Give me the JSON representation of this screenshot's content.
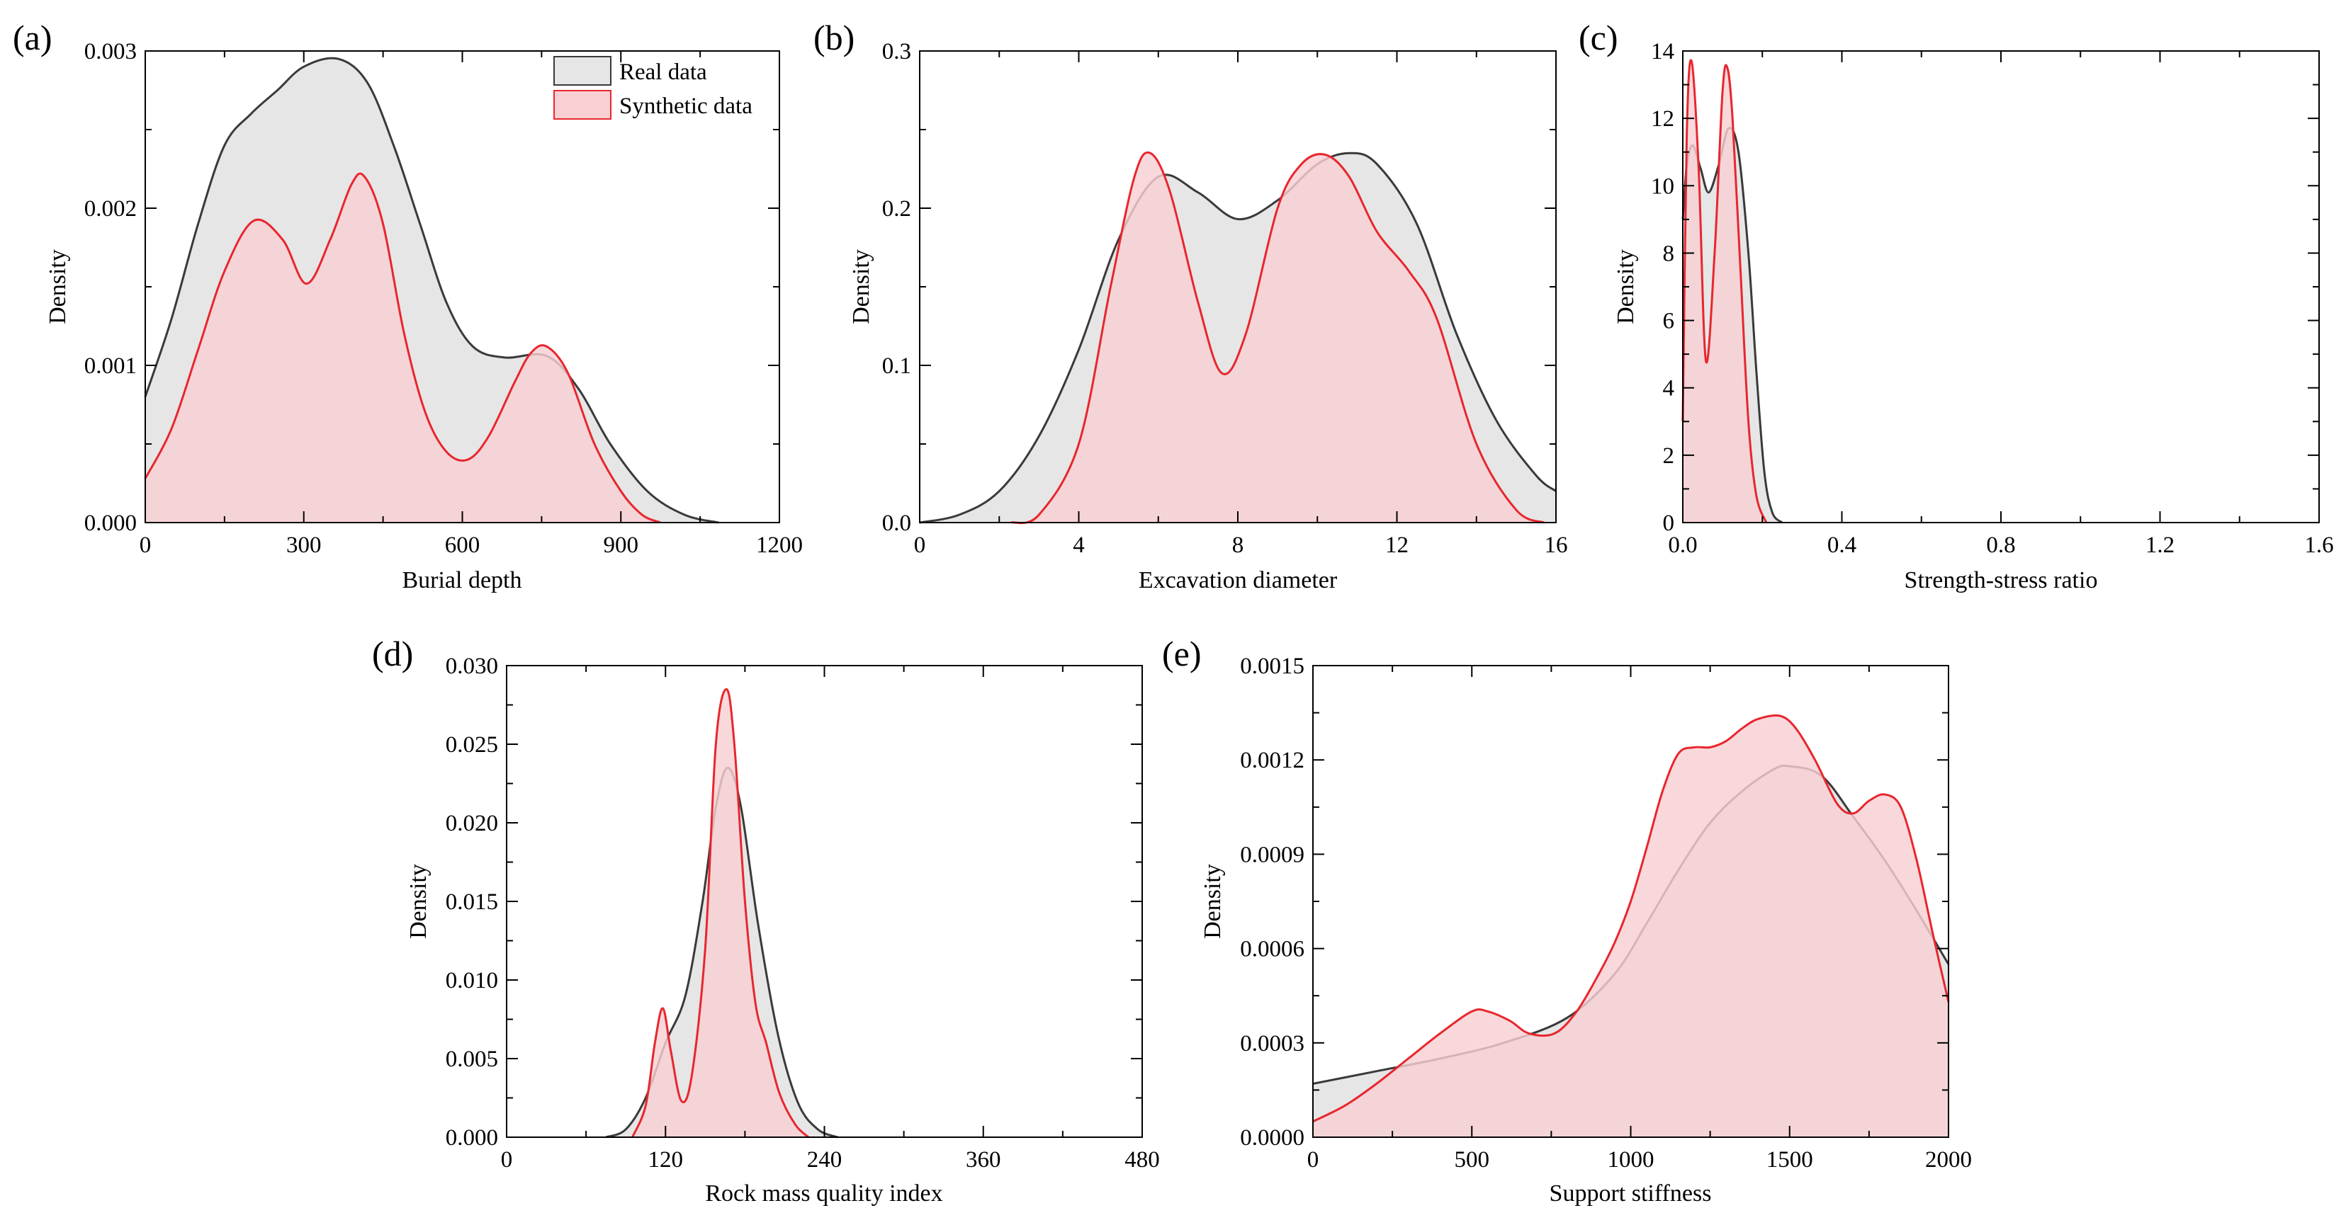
{
  "figure": {
    "colors": {
      "real_fill": "#e6e6e6",
      "real_line": "#3a3a3a",
      "synth_fill": "#f8d0d3",
      "synth_line": "#e8262e"
    },
    "legend": {
      "real_label": "Real data",
      "synth_label": "Synthetic data",
      "placement": "top-right of panel (a)"
    }
  },
  "chart_data": [
    {
      "id": "a",
      "type": "area",
      "panel_label": "(a)",
      "xlabel": "Burial depth",
      "ylabel": "Density",
      "xlim": [
        0,
        1200
      ],
      "ylim": [
        0,
        0.003
      ],
      "xticks": [
        "0",
        "300",
        "600",
        "900",
        "1200"
      ],
      "yticks": [
        "0.000",
        "0.001",
        "0.002",
        "0.003"
      ],
      "series": [
        {
          "name": "Real data",
          "x": [
            0,
            50,
            100,
            150,
            200,
            250,
            300,
            365,
            420,
            470,
            520,
            570,
            620,
            680,
            760,
            820,
            880,
            950,
            1020,
            1085
          ],
          "y": [
            0.0008,
            0.0013,
            0.0019,
            0.0024,
            0.0026,
            0.00275,
            0.0029,
            0.00295,
            0.0028,
            0.0024,
            0.0019,
            0.0014,
            0.00112,
            0.00105,
            0.00106,
            0.00085,
            0.0005,
            0.0002,
            5e-05,
            0.0
          ]
        },
        {
          "name": "Synthetic data",
          "x": [
            0,
            50,
            100,
            150,
            205,
            260,
            305,
            350,
            390,
            415,
            450,
            490,
            530,
            570,
            610,
            650,
            700,
            730,
            760,
            800,
            850,
            900,
            940,
            975
          ],
          "y": [
            0.00028,
            0.0006,
            0.0011,
            0.0016,
            0.00192,
            0.0018,
            0.00152,
            0.0018,
            0.00215,
            0.0022,
            0.0019,
            0.0012,
            0.0007,
            0.00045,
            0.0004,
            0.00055,
            0.0009,
            0.00108,
            0.00112,
            0.00095,
            0.0005,
            0.0002,
            5e-05,
            0.0
          ]
        }
      ]
    },
    {
      "id": "b",
      "type": "area",
      "panel_label": "(b)",
      "xlabel": "Excavation diameter",
      "ylabel": "Density",
      "xlim": [
        0,
        16
      ],
      "ylim": [
        0,
        0.3
      ],
      "xticks": [
        "0",
        "4",
        "8",
        "12",
        "16"
      ],
      "yticks": [
        "0.0",
        "0.1",
        "0.2",
        "0.3"
      ],
      "series": [
        {
          "name": "Real data",
          "x": [
            0,
            1,
            2,
            3,
            4,
            5,
            6,
            7,
            8,
            9,
            10,
            10.8,
            11.5,
            12.5,
            13.5,
            14.5,
            15.5,
            16
          ],
          "y": [
            0.0,
            0.005,
            0.02,
            0.055,
            0.11,
            0.18,
            0.22,
            0.21,
            0.193,
            0.205,
            0.228,
            0.235,
            0.228,
            0.19,
            0.12,
            0.065,
            0.03,
            0.02
          ]
        },
        {
          "name": "Synthetic data",
          "x": [
            2.3,
            3,
            4,
            4.8,
            5.4,
            5.8,
            6.3,
            7,
            7.6,
            8.2,
            9,
            9.6,
            10.2,
            10.8,
            11.5,
            12.3,
            13,
            14,
            15,
            15.7
          ],
          "y": [
            0.0,
            0.005,
            0.05,
            0.15,
            0.22,
            0.235,
            0.21,
            0.14,
            0.095,
            0.12,
            0.2,
            0.228,
            0.234,
            0.22,
            0.185,
            0.16,
            0.13,
            0.05,
            0.008,
            0.0
          ]
        }
      ]
    },
    {
      "id": "c",
      "type": "area",
      "panel_label": "(c)",
      "xlabel": "Strength-stress ratio",
      "ylabel": "Density",
      "xlim": [
        0,
        1.6
      ],
      "ylim": [
        0,
        14
      ],
      "xticks": [
        "0.0",
        "0.4",
        "0.8",
        "1.2",
        "1.6"
      ],
      "yticks": [
        "0",
        "2",
        "4",
        "6",
        "8",
        "10",
        "12",
        "14"
      ],
      "series": [
        {
          "name": "Real data",
          "x": [
            0.0,
            0.01,
            0.025,
            0.045,
            0.065,
            0.09,
            0.115,
            0.14,
            0.165,
            0.185,
            0.205,
            0.225,
            0.25
          ],
          "y": [
            9.0,
            10.6,
            11.2,
            10.5,
            9.8,
            10.6,
            11.7,
            11.0,
            8.0,
            4.5,
            1.5,
            0.3,
            0.0
          ]
        },
        {
          "name": "Synthetic data",
          "x": [
            0.0,
            0.01,
            0.022,
            0.04,
            0.058,
            0.08,
            0.1,
            0.112,
            0.125,
            0.145,
            0.165,
            0.185,
            0.21
          ],
          "y": [
            3.0,
            11.5,
            13.7,
            10.5,
            4.8,
            8.0,
            12.8,
            13.5,
            12.0,
            7.5,
            3.0,
            0.8,
            0.0
          ]
        }
      ]
    },
    {
      "id": "d",
      "type": "area",
      "panel_label": "(d)",
      "xlabel": "Rock mass quality index",
      "ylabel": "Density",
      "xlim": [
        0,
        480
      ],
      "ylim": [
        0,
        0.03
      ],
      "xticks": [
        "0",
        "120",
        "240",
        "360",
        "480"
      ],
      "yticks": [
        "0.000",
        "0.005",
        "0.010",
        "0.015",
        "0.020",
        "0.025",
        "0.030"
      ],
      "series": [
        {
          "name": "Real data",
          "x": [
            75,
            90,
            105,
            120,
            135,
            148,
            158,
            167,
            177,
            190,
            205,
            220,
            235,
            250
          ],
          "y": [
            0.0,
            0.0005,
            0.0025,
            0.006,
            0.009,
            0.015,
            0.021,
            0.0235,
            0.021,
            0.0135,
            0.0065,
            0.0022,
            0.0005,
            0.0
          ]
        },
        {
          "name": "Synthetic data",
          "x": [
            95,
            105,
            112,
            118,
            124,
            132,
            140,
            150,
            158,
            166,
            172,
            180,
            188,
            196,
            206,
            218,
            228
          ],
          "y": [
            0.0,
            0.002,
            0.006,
            0.0082,
            0.0055,
            0.0023,
            0.004,
            0.012,
            0.025,
            0.0285,
            0.025,
            0.015,
            0.0085,
            0.006,
            0.0028,
            0.0008,
            0.0
          ]
        }
      ]
    },
    {
      "id": "e",
      "type": "area",
      "panel_label": "(e)",
      "xlabel": "Support stiffness",
      "ylabel": "Density",
      "xlim": [
        0,
        2000
      ],
      "ylim": [
        0,
        0.0015
      ],
      "xticks": [
        "0",
        "500",
        "1000",
        "1500",
        "2000"
      ],
      "yticks": [
        "0.0000",
        "0.0003",
        "0.0006",
        "0.0009",
        "0.0012",
        "0.0015"
      ],
      "series": [
        {
          "name": "Real data",
          "x": [
            0,
            200,
            400,
            600,
            800,
            950,
            1050,
            1150,
            1250,
            1350,
            1450,
            1500,
            1600,
            1700,
            1800,
            1900,
            2000
          ],
          "y": [
            0.00017,
            0.00021,
            0.00025,
            0.0003,
            0.00038,
            0.00052,
            0.00068,
            0.00085,
            0.001,
            0.0011,
            0.00117,
            0.00118,
            0.00115,
            0.00102,
            0.00088,
            0.00072,
            0.00055
          ]
        },
        {
          "name": "Synthetic data",
          "x": [
            0,
            100,
            200,
            300,
            400,
            500,
            550,
            620,
            680,
            760,
            830,
            900,
            950,
            1000,
            1050,
            1100,
            1150,
            1200,
            1250,
            1300,
            1350,
            1400,
            1470,
            1520,
            1580,
            1650,
            1700,
            1750,
            1800,
            1850,
            1900,
            1950,
            2000
          ],
          "y": [
            5e-05,
            0.0001,
            0.00017,
            0.00025,
            0.00033,
            0.0004,
            0.0004,
            0.00037,
            0.00033,
            0.00033,
            0.0004,
            0.00052,
            0.00062,
            0.00075,
            0.00092,
            0.0011,
            0.00122,
            0.00124,
            0.00124,
            0.00126,
            0.0013,
            0.00133,
            0.00134,
            0.0013,
            0.0012,
            0.00106,
            0.00103,
            0.00107,
            0.00109,
            0.00105,
            0.00088,
            0.00065,
            0.00043
          ]
        }
      ]
    }
  ]
}
